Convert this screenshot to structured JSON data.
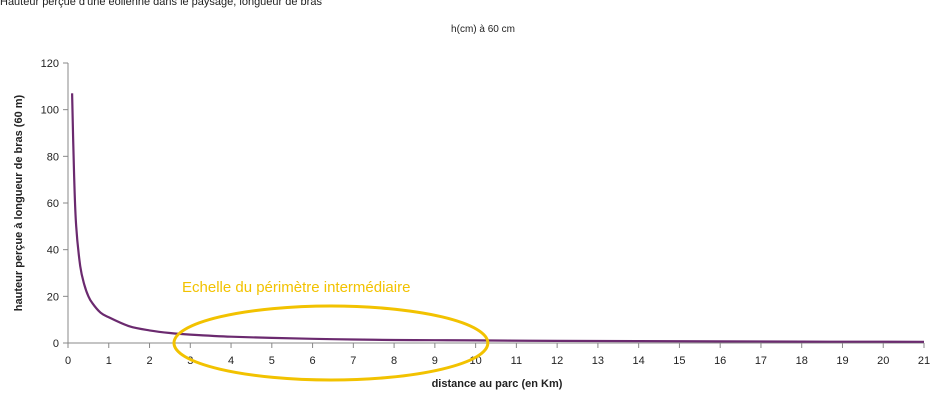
{
  "caption": "Hauteur perçue d'une éolienne dans le paysage, longueur de bras",
  "chart_data": {
    "type": "line",
    "title": "h(cm) à 60 cm",
    "xlabel": "distance au parc (en Km)",
    "ylabel": "hauteur perçue à longueur de bras (60 m)",
    "xlim": [
      0,
      21
    ],
    "ylim": [
      0,
      120
    ],
    "xticks": [
      0,
      1,
      2,
      3,
      4,
      5,
      6,
      7,
      8,
      9,
      10,
      11,
      12,
      13,
      14,
      15,
      16,
      17,
      18,
      19,
      20,
      21
    ],
    "yticks": [
      0,
      20,
      40,
      60,
      80,
      100,
      120
    ],
    "grid": false,
    "colors": {
      "line": "#6b2a6f",
      "annotation": "#f2c200"
    },
    "series": [
      {
        "x": [
          0.1,
          0.15,
          0.2,
          0.3,
          0.4,
          0.5,
          0.6,
          0.8,
          1,
          1.5,
          2,
          2.5,
          3,
          4,
          5,
          6,
          7,
          8,
          9,
          10,
          12,
          14,
          16,
          18,
          20,
          21
        ],
        "y": [
          107,
          72,
          50,
          33,
          25,
          20,
          17,
          13,
          11,
          7.2,
          5.4,
          4.3,
          3.6,
          2.7,
          2.2,
          1.8,
          1.5,
          1.3,
          1.2,
          1.1,
          0.9,
          0.8,
          0.7,
          0.6,
          0.55,
          0.5
        ]
      }
    ],
    "annotations": [
      {
        "text": "Echelle du périmètre intermédiaire",
        "x_range": [
          2.6,
          10.3
        ],
        "y_center": 0
      }
    ]
  }
}
